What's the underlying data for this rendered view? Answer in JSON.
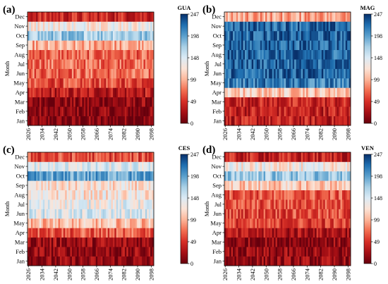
{
  "chart_data": [
    {
      "type": "heatmap",
      "panel_label": "(a)",
      "station": "GUA",
      "ylabel": "Month",
      "months": [
        "Jan",
        "Feb",
        "Mar",
        "Apr",
        "May",
        "Jun",
        "Jul",
        "Aug",
        "Sep",
        "Oct",
        "Nov",
        "Dec"
      ],
      "x_ticks": [
        "2026",
        "2034",
        "2042",
        "2050",
        "2058",
        "2066",
        "2074",
        "2082",
        "2090",
        "2098"
      ],
      "year_range": [
        2026,
        2100
      ],
      "colorbar_range": [
        0,
        247
      ],
      "colorbar_ticks": [
        "0",
        "49",
        "99",
        "148",
        "198",
        "247"
      ],
      "monthly_values": [
        10,
        12,
        15,
        35,
        60,
        72,
        75,
        70,
        95,
        175,
        135,
        45
      ]
    },
    {
      "type": "heatmap",
      "panel_label": "(b)",
      "station": "MAG",
      "ylabel": "Month",
      "months": [
        "Jan",
        "Feb",
        "Mar",
        "Apr",
        "May",
        "Jun",
        "Jul",
        "Aug",
        "Sep",
        "Oct",
        "Nov",
        "Dec"
      ],
      "x_ticks": [
        "2026",
        "2034",
        "2042",
        "2050",
        "2058",
        "2066",
        "2074",
        "2082",
        "2090",
        "2098"
      ],
      "year_range": [
        2026,
        2100
      ],
      "colorbar_range": [
        0,
        247
      ],
      "colorbar_ticks": [
        "0",
        "49",
        "99",
        "148",
        "198",
        "247"
      ],
      "monthly_values": [
        38,
        40,
        42,
        110,
        215,
        225,
        225,
        225,
        225,
        225,
        225,
        95
      ]
    },
    {
      "type": "heatmap",
      "panel_label": "(c)",
      "station": "CES",
      "ylabel": "Month",
      "months": [
        "Jan",
        "Feb",
        "Mar",
        "Apr",
        "May",
        "Jun",
        "Jul",
        "Aug",
        "Sep",
        "Oct",
        "Nov",
        "Dec"
      ],
      "x_ticks": [
        "2026",
        "2034",
        "2042",
        "2050",
        "2058",
        "2066",
        "2074",
        "2082",
        "2090",
        "2098"
      ],
      "year_range": [
        2026,
        2100
      ],
      "colorbar_range": [
        0,
        247
      ],
      "colorbar_ticks": [
        "0",
        "49",
        "99",
        "148",
        "198",
        "247"
      ],
      "monthly_values": [
        15,
        18,
        22,
        65,
        105,
        148,
        140,
        125,
        120,
        195,
        145,
        60
      ]
    },
    {
      "type": "heatmap",
      "panel_label": "(d)",
      "station": "VEN",
      "ylabel": "Month",
      "months": [
        "Jan",
        "Feb",
        "Mar",
        "Apr",
        "May",
        "Jun",
        "Jul",
        "Aug",
        "Sep",
        "Oct",
        "Nov",
        "Dec"
      ],
      "x_ticks": [
        "2026",
        "2034",
        "2042",
        "2050",
        "2058",
        "2066",
        "2074",
        "2082",
        "2090",
        "2098"
      ],
      "year_range": [
        2026,
        2100
      ],
      "colorbar_range": [
        0,
        247
      ],
      "colorbar_ticks": [
        "0",
        "49",
        "99",
        "148",
        "198",
        "247"
      ],
      "monthly_values": [
        18,
        16,
        15,
        30,
        55,
        60,
        62,
        65,
        110,
        175,
        130,
        40
      ]
    }
  ]
}
